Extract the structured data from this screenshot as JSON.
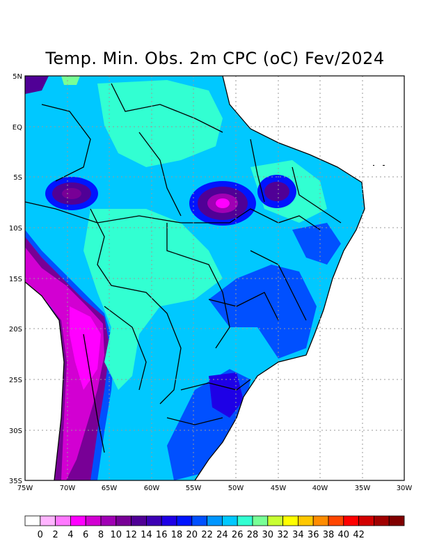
{
  "title": "Temp. Min. Obs. 2m CPC (oC) Fev/2024",
  "lat_ticks": [
    "5N",
    "EQ",
    "5S",
    "10S",
    "15S",
    "20S",
    "25S",
    "30S",
    "35S"
  ],
  "lon_ticks": [
    "75W",
    "70W",
    "65W",
    "60W",
    "55W",
    "50W",
    "45W",
    "40W",
    "35W",
    "30W"
  ],
  "colorbar": {
    "labels": [
      "0",
      "2",
      "4",
      "6",
      "8",
      "10",
      "12",
      "14",
      "16",
      "18",
      "20",
      "22",
      "24",
      "26",
      "28",
      "30",
      "32",
      "34",
      "36",
      "38",
      "40",
      "42"
    ],
    "colors": [
      "#ffffff",
      "#ffb4ff",
      "#ff78ff",
      "#ff00ff",
      "#d200d2",
      "#a000b4",
      "#780096",
      "#500096",
      "#3c00b4",
      "#1e00e6",
      "#0014ff",
      "#0050ff",
      "#0096ff",
      "#00c8ff",
      "#32ffd2",
      "#78ff96",
      "#c8ff32",
      "#ffff00",
      "#ffc800",
      "#ff8c00",
      "#ff4600",
      "#ff0000",
      "#d20000",
      "#a00000",
      "#800000"
    ]
  },
  "map_extent": {
    "lon": [
      -75,
      -30
    ],
    "lat": [
      -35,
      5
    ]
  },
  "grid": true
}
